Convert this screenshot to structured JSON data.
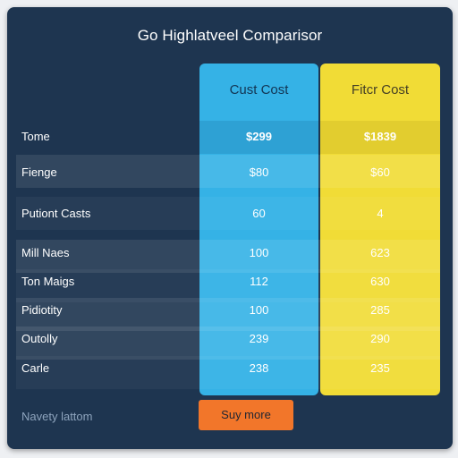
{
  "title": "Go Highlatveel Comparisor",
  "columns": [
    {
      "header": "Cust Cost",
      "color": "#35b2e6"
    },
    {
      "header": "Fitcr Cost",
      "color": "#f1dc36"
    }
  ],
  "rows": [
    {
      "label": "Tome",
      "blue": "$299",
      "yellow": "$1839"
    },
    {
      "label": "Fienge",
      "blue": "$80",
      "yellow": "$60"
    },
    {
      "label": "Putiont Casts",
      "blue": "60",
      "yellow": "4"
    },
    {
      "label": "Mill Naes",
      "blue": "100",
      "yellow": "623"
    },
    {
      "label": "Ton Maigs",
      "blue": "112",
      "yellow": "630"
    },
    {
      "label": "Pidiotity",
      "blue": "100",
      "yellow": "285"
    },
    {
      "label": "Outolly",
      "blue": "239",
      "yellow": "290"
    },
    {
      "label": "Carle",
      "blue": "238",
      "yellow": "235"
    }
  ],
  "footer": {
    "link_label": "Navety lattom",
    "button_label": "Suy more",
    "button_color": "#f2762a"
  }
}
